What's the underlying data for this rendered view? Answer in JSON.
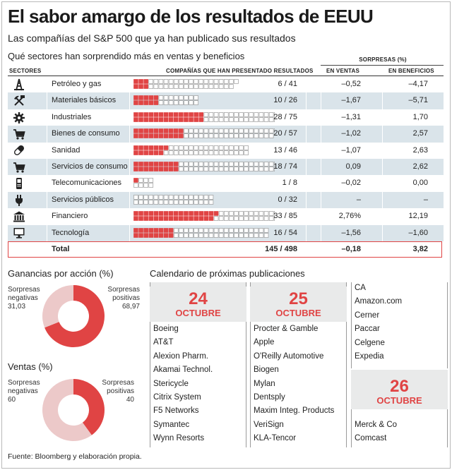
{
  "header": {
    "title": "El sabor amargo de los resultados de EEUU",
    "subtitle": "Las compañías del S&P 500 que ya han publicado sus resultados",
    "table_title": "Qué sectores han sorprendido más en ventas y beneficios"
  },
  "table": {
    "surprises_label": "SORPRESAS (%)",
    "col_sectors": "SECTORES",
    "col_companies": "COMPAÑÍAS QUE HAN PRESENTADO RESULTADOS",
    "col_sales": "EN VENTAS",
    "col_profits": "EN BENEFICIOS",
    "rows": [
      {
        "icon": "oil-rig-icon",
        "sector": "Petróleo y gas",
        "reported": 6,
        "total": 41,
        "count_text": "6 / 41",
        "sales": "–0,52",
        "profits": "–4,17"
      },
      {
        "icon": "pickaxe-hammer-icon",
        "sector": "Materiales básicos",
        "reported": 10,
        "total": 26,
        "count_text": "10 / 26",
        "sales": "–1,67",
        "profits": "–5,71"
      },
      {
        "icon": "gear-icon",
        "sector": "Industriales",
        "reported": 28,
        "total": 75,
        "count_text": "28 / 75",
        "sales": "–1,31",
        "profits": "1,70"
      },
      {
        "icon": "shopping-cart-icon",
        "sector": "Bienes de consumo",
        "reported": 20,
        "total": 57,
        "count_text": "20 / 57",
        "sales": "–1,02",
        "profits": "2,57"
      },
      {
        "icon": "pill-icon",
        "sector": "Sanidad",
        "reported": 13,
        "total": 46,
        "count_text": "13 / 46",
        "sales": "–1,07",
        "profits": "2,63"
      },
      {
        "icon": "shopping-cart-icon",
        "sector": "Servicios de consumo",
        "reported": 18,
        "total": 74,
        "count_text": "18 / 74",
        "sales": "0,09",
        "profits": "2,62"
      },
      {
        "icon": "mobile-phone-icon",
        "sector": "Telecomunicaciones",
        "reported": 1,
        "total": 8,
        "count_text": "1 / 8",
        "sales": "–0,02",
        "profits": "0,00"
      },
      {
        "icon": "power-plug-icon",
        "sector": "Servicios públicos",
        "reported": 0,
        "total": 32,
        "count_text": "0 / 32",
        "sales": "–",
        "profits": "–"
      },
      {
        "icon": "bank-icon",
        "sector": "Financiero",
        "reported": 33,
        "total": 85,
        "count_text": "33 / 85",
        "sales": "2,76%",
        "profits": "12,19"
      },
      {
        "icon": "monitor-icon",
        "sector": "Tecnología",
        "reported": 16,
        "total": 54,
        "count_text": "16 / 54",
        "sales": "–1,56",
        "profits": "–1,60"
      }
    ],
    "total_row": {
      "label": "Total",
      "count_text": "145 / 498",
      "sales": "–0,18",
      "profits": "3,82"
    }
  },
  "donuts": [
    {
      "title": "Ganancias por acción (%)",
      "neg_label": "Sorpresas negativas",
      "neg_value": "31,03",
      "pos_label": "Sorpresas positivas",
      "pos_value": "68,97",
      "neg": 31.03,
      "pos": 68.97
    },
    {
      "title": "Ventas (%)",
      "neg_label": "Sorpresas negativas",
      "neg_value": "60",
      "pos_label": "Sorpresas positivas",
      "pos_value": "40",
      "neg": 60,
      "pos": 40
    }
  ],
  "calendar": {
    "title": "Calendario de próximas publicaciones",
    "days": [
      {
        "day": "24",
        "month": "OCTUBRE",
        "companies": [
          "Boeing",
          "AT&T",
          "Alexion Pharm.",
          "Akamai Technol.",
          "Stericycle",
          "Citrix System",
          "F5 Networks",
          "Symantec",
          "Wynn Resorts"
        ]
      },
      {
        "day": "25",
        "month": "OCTUBRE",
        "companies": [
          "Procter & Gamble",
          "Apple",
          "O'Reilly Automotive",
          "Biogen",
          "Mylan",
          "Dentsply",
          "Maxim Integ. Products",
          "VeriSign",
          "KLA-Tencor"
        ]
      },
      {
        "day": "",
        "month": "",
        "companies": [
          "CA",
          "Amazon.com",
          "Cerner",
          "Paccar",
          "Celgene",
          "Expedia"
        ]
      },
      {
        "day": "26",
        "month": "OCTUBRE",
        "companies": [
          "Merck & Co",
          "Comcast"
        ]
      }
    ]
  },
  "source": "Fuente: Bloomberg y elaboración propia.",
  "colors": {
    "accent_red": "#e04444",
    "empty_square": "#ffffff",
    "square_border": "#9a9a9a",
    "row_shade": "#dae4ea",
    "donut_negative": "#ecc9c9",
    "donut_positive": "#e04444",
    "date_box": "#e9eaea"
  },
  "chart_data": [
    {
      "type": "table",
      "title": "Qué sectores han sorprendido más en ventas y beneficios",
      "categories": [
        "Petróleo y gas",
        "Materiales básicos",
        "Industriales",
        "Bienes de consumo",
        "Sanidad",
        "Servicios de consumo",
        "Telecomunicaciones",
        "Servicios públicos",
        "Financiero",
        "Tecnología"
      ],
      "series": [
        {
          "name": "COMPAÑÍAS QUE HAN PRESENTADO RESULTADOS",
          "values": [
            6,
            10,
            28,
            20,
            13,
            18,
            1,
            0,
            33,
            16
          ]
        },
        {
          "name": "EN VENTAS",
          "values": [
            -0.52,
            -1.67,
            -1.31,
            -1.02,
            -1.07,
            0.09,
            -0.02,
            null,
            2.76,
            -1.56
          ]
        },
        {
          "name": "EN BENEFICIOS",
          "values": [
            -4.17,
            -5.71,
            1.7,
            2.57,
            2.63,
            2.62,
            0.0,
            null,
            12.19,
            -1.6
          ]
        }
      ]
    },
    {
      "type": "pie",
      "title": "Ganancias por acción (%)",
      "categories": [
        "Sorpresas negativas",
        "Sorpresas positivas"
      ],
      "values": [
        31.03,
        68.97
      ]
    },
    {
      "type": "pie",
      "title": "Ventas (%)",
      "categories": [
        "Sorpresas negativas",
        "Sorpresas positivas"
      ],
      "values": [
        60,
        40
      ]
    }
  ]
}
